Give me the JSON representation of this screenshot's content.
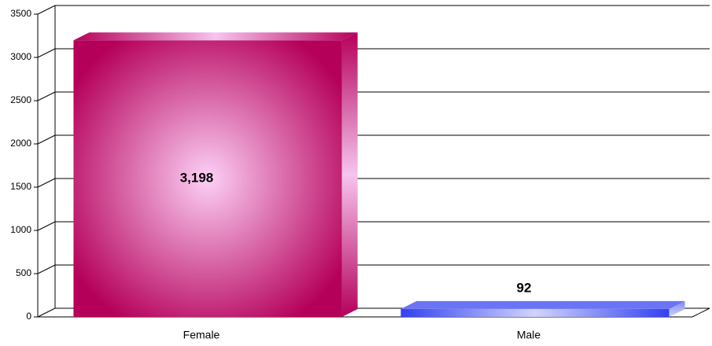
{
  "chart_data": {
    "type": "bar3d",
    "categories": [
      "Female",
      "Male"
    ],
    "values": [
      3198,
      92
    ],
    "value_labels": [
      "3,198",
      "92"
    ],
    "colors": [
      "#b5005a",
      "#3340f0"
    ],
    "ylim": [
      0,
      3500
    ],
    "yticks": [
      0,
      500,
      1000,
      1500,
      2000,
      2500,
      3000,
      3500
    ],
    "grid": true
  }
}
